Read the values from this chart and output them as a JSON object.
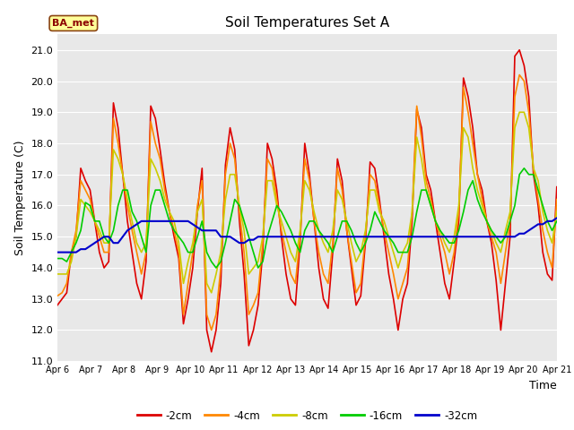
{
  "title": "Soil Temperatures Set A",
  "xlabel": "Time",
  "ylabel": "Soil Temperature (C)",
  "ylim": [
    11.0,
    21.5
  ],
  "yticks": [
    11.0,
    12.0,
    13.0,
    14.0,
    15.0,
    16.0,
    17.0,
    18.0,
    19.0,
    20.0,
    21.0
  ],
  "fig_bg_color": "#ffffff",
  "plot_bg_color": "#e8e8e8",
  "annotation_text": "BA_met",
  "annotation_bg": "#ffff99",
  "annotation_border": "#8B4513",
  "annotation_text_color": "#8B0000",
  "legend_entries": [
    "-2cm",
    "-4cm",
    "-8cm",
    "-16cm",
    "-32cm"
  ],
  "line_colors": [
    "#dd0000",
    "#ff8800",
    "#cccc00",
    "#00cc00",
    "#0000cc"
  ],
  "line_widths": [
    1.2,
    1.2,
    1.2,
    1.2,
    1.5
  ],
  "x_tick_labels": [
    "Apr 6",
    "Apr 7",
    "Apr 8",
    "Apr 9",
    "Apr 10",
    "Apr 11",
    "Apr 12",
    "Apr 13",
    "Apr 14",
    "Apr 15",
    "Apr 16",
    "Apr 17",
    "Apr 18",
    "Apr 19",
    "Apr 20",
    "Apr 21"
  ],
  "series_2cm": [
    12.8,
    13.0,
    13.2,
    14.5,
    15.0,
    17.2,
    16.8,
    16.5,
    15.5,
    14.5,
    14.0,
    14.2,
    19.3,
    18.5,
    17.0,
    15.5,
    14.5,
    13.5,
    13.0,
    14.2,
    19.2,
    18.8,
    17.8,
    16.7,
    15.8,
    15.0,
    14.3,
    12.2,
    13.0,
    14.0,
    15.8,
    17.2,
    12.0,
    11.3,
    12.0,
    13.5,
    17.3,
    18.5,
    17.8,
    15.5,
    13.8,
    11.5,
    12.0,
    12.8,
    14.5,
    18.0,
    17.5,
    16.5,
    15.0,
    13.8,
    13.0,
    12.8,
    14.8,
    18.0,
    17.0,
    15.5,
    14.0,
    13.0,
    12.7,
    14.5,
    17.5,
    16.8,
    15.2,
    14.0,
    12.8,
    13.1,
    14.8,
    17.4,
    17.2,
    16.2,
    15.0,
    13.8,
    13.0,
    12.0,
    13.0,
    13.5,
    15.5,
    19.1,
    18.5,
    17.0,
    16.5,
    15.5,
    14.5,
    13.5,
    13.0,
    14.2,
    15.5,
    20.1,
    19.5,
    18.5,
    17.0,
    16.5,
    15.5,
    14.8,
    13.6,
    12.0,
    13.5,
    15.0,
    20.8,
    21.0,
    20.5,
    19.5,
    17.0,
    16.0,
    14.5,
    13.8,
    13.6,
    16.6
  ],
  "series_4cm": [
    13.1,
    13.2,
    13.5,
    14.5,
    15.2,
    16.8,
    16.5,
    16.2,
    15.5,
    15.0,
    14.5,
    14.5,
    18.8,
    18.0,
    17.0,
    16.0,
    15.2,
    14.5,
    13.8,
    14.5,
    18.7,
    18.0,
    17.5,
    16.5,
    15.8,
    15.2,
    14.5,
    12.5,
    13.5,
    14.5,
    16.0,
    16.8,
    12.5,
    12.0,
    12.5,
    14.0,
    17.0,
    18.0,
    17.5,
    15.8,
    14.5,
    12.5,
    12.8,
    13.2,
    14.8,
    17.5,
    17.2,
    16.2,
    15.2,
    14.5,
    13.8,
    13.5,
    15.0,
    17.5,
    16.8,
    15.5,
    14.5,
    13.8,
    13.5,
    14.8,
    17.2,
    16.5,
    15.2,
    14.2,
    13.2,
    13.5,
    15.0,
    17.0,
    16.8,
    16.0,
    15.2,
    14.5,
    13.8,
    13.0,
    13.5,
    14.0,
    15.8,
    19.2,
    18.2,
    16.8,
    16.2,
    15.5,
    15.0,
    14.5,
    13.8,
    14.5,
    15.8,
    19.8,
    19.0,
    18.0,
    17.0,
    16.2,
    15.5,
    15.0,
    14.5,
    13.5,
    14.5,
    15.5,
    19.5,
    20.2,
    20.0,
    19.0,
    17.2,
    16.2,
    15.2,
    14.5,
    14.0,
    16.2
  ],
  "series_8cm": [
    13.8,
    13.8,
    13.8,
    14.2,
    15.0,
    16.2,
    16.0,
    15.8,
    15.5,
    15.2,
    14.8,
    14.8,
    17.8,
    17.5,
    17.0,
    16.2,
    15.5,
    14.8,
    14.5,
    14.8,
    17.5,
    17.2,
    16.8,
    16.2,
    15.8,
    15.5,
    14.8,
    13.5,
    14.2,
    14.8,
    15.8,
    16.2,
    13.5,
    13.2,
    13.8,
    14.5,
    16.2,
    17.0,
    17.0,
    16.0,
    15.2,
    13.8,
    14.0,
    14.2,
    15.0,
    16.8,
    16.8,
    16.0,
    15.5,
    15.0,
    14.5,
    14.2,
    15.2,
    16.8,
    16.5,
    15.8,
    15.2,
    14.8,
    14.5,
    15.2,
    16.5,
    16.2,
    15.5,
    14.8,
    14.2,
    14.5,
    15.2,
    16.5,
    16.5,
    15.8,
    15.5,
    15.0,
    14.5,
    14.0,
    14.5,
    14.8,
    15.8,
    18.2,
    17.5,
    16.5,
    16.0,
    15.5,
    15.2,
    14.8,
    14.5,
    15.0,
    16.0,
    18.5,
    18.2,
    17.2,
    16.5,
    16.0,
    15.5,
    15.2,
    14.8,
    14.5,
    15.2,
    15.8,
    18.5,
    19.0,
    19.0,
    18.5,
    17.2,
    16.8,
    15.8,
    15.2,
    14.8,
    15.8
  ],
  "series_16cm": [
    14.3,
    14.3,
    14.2,
    14.5,
    14.8,
    15.2,
    16.1,
    16.0,
    15.5,
    15.5,
    15.0,
    14.8,
    15.2,
    16.0,
    16.5,
    16.5,
    15.8,
    15.5,
    15.0,
    14.5,
    16.0,
    16.5,
    16.5,
    16.0,
    15.5,
    15.2,
    15.0,
    14.8,
    14.5,
    14.5,
    15.0,
    15.5,
    14.5,
    14.2,
    14.0,
    14.2,
    14.8,
    15.5,
    16.2,
    16.0,
    15.5,
    15.0,
    14.5,
    14.0,
    14.2,
    15.0,
    15.5,
    16.0,
    15.8,
    15.5,
    15.2,
    14.8,
    14.5,
    15.2,
    15.5,
    15.5,
    15.2,
    15.0,
    14.8,
    14.5,
    15.0,
    15.5,
    15.5,
    15.2,
    14.8,
    14.5,
    14.8,
    15.2,
    15.8,
    15.5,
    15.2,
    15.0,
    14.8,
    14.5,
    14.5,
    14.5,
    15.0,
    15.8,
    16.5,
    16.5,
    16.0,
    15.5,
    15.2,
    15.0,
    14.8,
    14.8,
    15.2,
    15.8,
    16.5,
    16.8,
    16.2,
    15.8,
    15.5,
    15.2,
    15.0,
    14.8,
    15.0,
    15.5,
    16.0,
    17.0,
    17.2,
    17.0,
    17.0,
    16.5,
    16.0,
    15.5,
    15.2,
    15.5
  ],
  "series_32cm": [
    14.5,
    14.5,
    14.5,
    14.5,
    14.5,
    14.6,
    14.6,
    14.7,
    14.8,
    14.9,
    15.0,
    15.0,
    14.8,
    14.8,
    15.0,
    15.2,
    15.3,
    15.4,
    15.5,
    15.5,
    15.5,
    15.5,
    15.5,
    15.5,
    15.5,
    15.5,
    15.5,
    15.5,
    15.5,
    15.4,
    15.3,
    15.2,
    15.2,
    15.2,
    15.2,
    15.0,
    15.0,
    15.0,
    14.9,
    14.8,
    14.8,
    14.9,
    14.9,
    15.0,
    15.0,
    15.0,
    15.0,
    15.0,
    15.0,
    15.0,
    15.0,
    15.0,
    15.0,
    15.0,
    15.0,
    15.0,
    15.0,
    15.0,
    15.0,
    15.0,
    15.0,
    15.0,
    15.0,
    15.0,
    15.0,
    15.0,
    15.0,
    15.0,
    15.0,
    15.0,
    15.0,
    15.0,
    15.0,
    15.0,
    15.0,
    15.0,
    15.0,
    15.0,
    15.0,
    15.0,
    15.0,
    15.0,
    15.0,
    15.0,
    15.0,
    15.0,
    15.0,
    15.0,
    15.0,
    15.0,
    15.0,
    15.0,
    15.0,
    15.0,
    15.0,
    15.0,
    15.0,
    15.0,
    15.0,
    15.1,
    15.1,
    15.2,
    15.3,
    15.4,
    15.4,
    15.5,
    15.5,
    15.6
  ]
}
